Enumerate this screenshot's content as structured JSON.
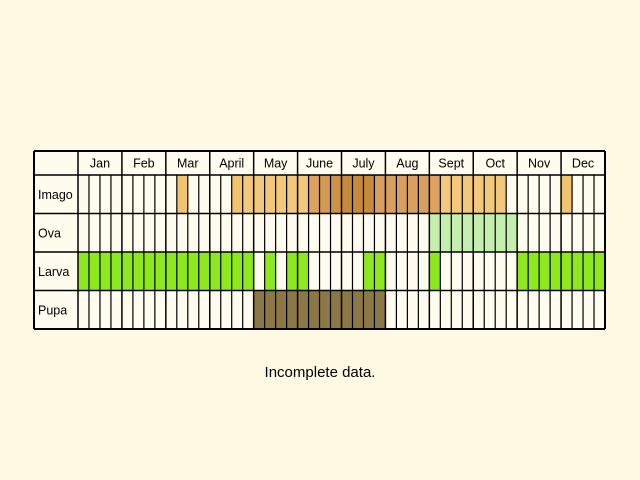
{
  "chart_data": {
    "type": "table",
    "title": "",
    "columns": [
      "Jan",
      "Feb",
      "Mar",
      "April",
      "May",
      "June",
      "July",
      "Aug",
      "Sept",
      "Oct",
      "Nov",
      "Dec"
    ],
    "weeks_per_month": 4,
    "rows": [
      {
        "name": "Imago",
        "cells": [
          {
            "week": 10,
            "color": "#f2c36f"
          },
          {
            "week": 15,
            "color": "#f2c36f"
          },
          {
            "week": 16,
            "color": "#f2c87a"
          },
          {
            "week": 17,
            "color": "#f2c87a"
          },
          {
            "week": 18,
            "color": "#f2c87a"
          },
          {
            "week": 19,
            "color": "#f2c87a"
          },
          {
            "week": 20,
            "color": "#f2c87a"
          },
          {
            "week": 21,
            "color": "#f2c87a"
          },
          {
            "week": 22,
            "color": "#dca25e"
          },
          {
            "week": 23,
            "color": "#d29a52"
          },
          {
            "week": 24,
            "color": "#cc9344"
          },
          {
            "week": 25,
            "color": "#c58a3a"
          },
          {
            "week": 26,
            "color": "#c58a3a"
          },
          {
            "week": 27,
            "color": "#c58a3a"
          },
          {
            "week": 28,
            "color": "#d8a05f"
          },
          {
            "week": 29,
            "color": "#d8a05f"
          },
          {
            "week": 30,
            "color": "#d8a05f"
          },
          {
            "week": 31,
            "color": "#d8a05f"
          },
          {
            "week": 32,
            "color": "#d8a05f"
          },
          {
            "week": 33,
            "color": "#dca25e"
          },
          {
            "week": 34,
            "color": "#f2c87a"
          },
          {
            "week": 35,
            "color": "#f2c87a"
          },
          {
            "week": 36,
            "color": "#f2c87a"
          },
          {
            "week": 37,
            "color": "#f2c87a"
          },
          {
            "week": 38,
            "color": "#f2c87a"
          },
          {
            "week": 39,
            "color": "#f2c87a"
          },
          {
            "week": 45,
            "color": "#f2c36f"
          }
        ]
      },
      {
        "name": "Ova",
        "cells": [
          {
            "week": 33,
            "color": "#c5efaf"
          },
          {
            "week": 34,
            "color": "#c5efaf"
          },
          {
            "week": 35,
            "color": "#c5efaf"
          },
          {
            "week": 36,
            "color": "#c5efaf"
          },
          {
            "week": 37,
            "color": "#c5efaf"
          },
          {
            "week": 38,
            "color": "#c5efaf"
          },
          {
            "week": 39,
            "color": "#c5efaf"
          },
          {
            "week": 40,
            "color": "#c5efaf"
          }
        ]
      },
      {
        "name": "Larva",
        "cells": [
          {
            "week": 1,
            "color": "#8ee81e"
          },
          {
            "week": 2,
            "color": "#8ee81e"
          },
          {
            "week": 3,
            "color": "#8ee81e"
          },
          {
            "week": 4,
            "color": "#8ee81e"
          },
          {
            "week": 5,
            "color": "#8ee81e"
          },
          {
            "week": 6,
            "color": "#8ee81e"
          },
          {
            "week": 7,
            "color": "#8ee81e"
          },
          {
            "week": 8,
            "color": "#8ee81e"
          },
          {
            "week": 9,
            "color": "#8ee81e"
          },
          {
            "week": 10,
            "color": "#8ee81e"
          },
          {
            "week": 11,
            "color": "#8ee81e"
          },
          {
            "week": 12,
            "color": "#8ee81e"
          },
          {
            "week": 13,
            "color": "#8ee81e"
          },
          {
            "week": 14,
            "color": "#8ee81e"
          },
          {
            "week": 15,
            "color": "#8ee81e"
          },
          {
            "week": 16,
            "color": "#8ee81e"
          },
          {
            "week": 18,
            "color": "#8ee81e"
          },
          {
            "week": 20,
            "color": "#8ee81e"
          },
          {
            "week": 21,
            "color": "#8ee81e"
          },
          {
            "week": 27,
            "color": "#8ee81e"
          },
          {
            "week": 28,
            "color": "#8ee81e"
          },
          {
            "week": 33,
            "color": "#8ee81e"
          },
          {
            "week": 41,
            "color": "#8ee81e"
          },
          {
            "week": 42,
            "color": "#8ee81e"
          },
          {
            "week": 43,
            "color": "#8ee81e"
          },
          {
            "week": 44,
            "color": "#8ee81e"
          },
          {
            "week": 45,
            "color": "#8ee81e"
          },
          {
            "week": 46,
            "color": "#8ee81e"
          },
          {
            "week": 47,
            "color": "#8ee81e"
          },
          {
            "week": 48,
            "color": "#8ee81e"
          }
        ]
      },
      {
        "name": "Pupa",
        "cells": [
          {
            "week": 17,
            "color": "#8c7746"
          },
          {
            "week": 18,
            "color": "#8c7746"
          },
          {
            "week": 19,
            "color": "#8c7746"
          },
          {
            "week": 20,
            "color": "#8c7746"
          },
          {
            "week": 21,
            "color": "#8c7746"
          },
          {
            "week": 22,
            "color": "#8c7746"
          },
          {
            "week": 23,
            "color": "#8c7746"
          },
          {
            "week": 24,
            "color": "#8c7746"
          },
          {
            "week": 25,
            "color": "#8c7746"
          },
          {
            "week": 26,
            "color": "#8c7746"
          },
          {
            "week": 27,
            "color": "#8c7746"
          },
          {
            "week": 28,
            "color": "#8c7746"
          }
        ]
      }
    ]
  },
  "caption": "Incomplete data.",
  "colors": {
    "background": "#fdf9e2",
    "cell_background": "#fffbee",
    "grid": "#000000"
  }
}
